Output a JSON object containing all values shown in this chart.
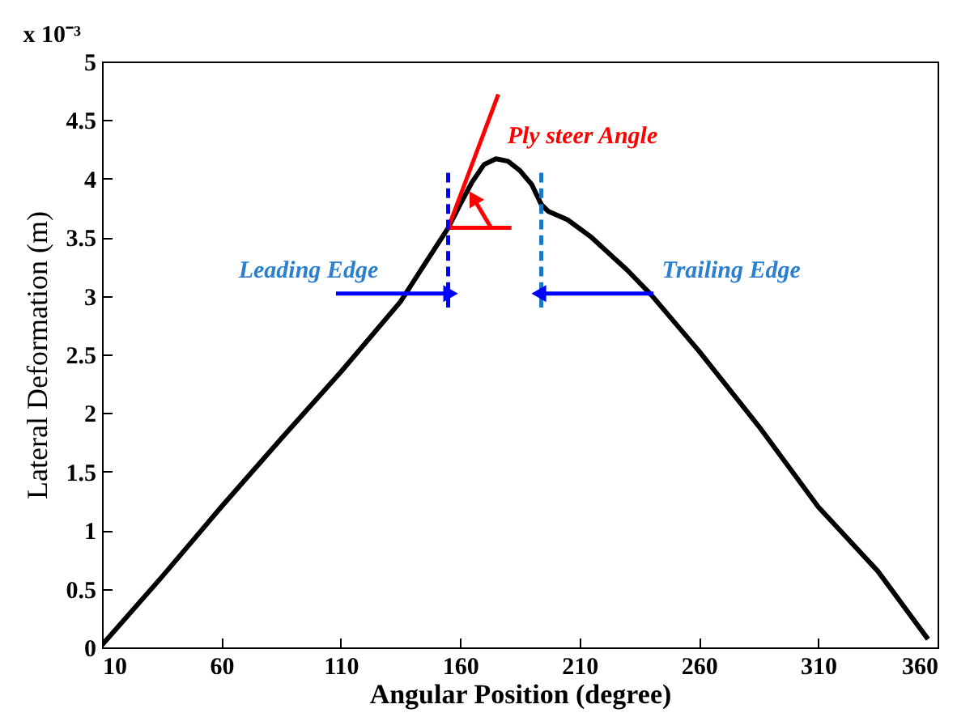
{
  "chart_data": {
    "type": "line",
    "xlabel": "Angular Position (degree)",
    "ylabel": "Lateral Deformation (m)",
    "xlim": [
      10,
      360
    ],
    "xticks": [
      10,
      60,
      110,
      160,
      210,
      260,
      310,
      360
    ],
    "ylim": [
      0,
      5
    ],
    "yticks": [
      0,
      0.5,
      1,
      1.5,
      2,
      2.5,
      3,
      3.5,
      4,
      4.5,
      5
    ],
    "grid": false,
    "series": [
      {
        "color": "#000000",
        "x": [
          10,
          35,
          60,
          85,
          110,
          135,
          155,
          160,
          165,
          170,
          175,
          180,
          185,
          190,
          194,
          197,
          205,
          215,
          230,
          240,
          260,
          285,
          310,
          335,
          356
        ],
        "values": [
          0.02,
          0.6,
          1.2,
          1.78,
          2.35,
          2.95,
          3.58,
          3.78,
          3.97,
          4.12,
          4.17,
          4.15,
          4.07,
          3.95,
          3.78,
          3.72,
          3.65,
          3.5,
          3.22,
          3.01,
          2.53,
          1.89,
          1.2,
          0.65,
          0.07
        ]
      },
      {
        "type": "line",
        "color": "#ff0000",
        "x": [
          155,
          176
        ],
        "values": [
          3.58,
          4.72
        ]
      },
      {
        "type": "line",
        "color": "#ff0000",
        "x": [
          155,
          181.5
        ],
        "values": [
          3.58,
          3.58
        ]
      },
      {
        "type": "line",
        "color": "#ff0000",
        "x": [
          173,
          166
        ],
        "values": [
          3.58,
          3.82
        ],
        "marker": "triangle"
      },
      {
        "type": "line",
        "color": "#0000ff",
        "x": [
          155,
          155
        ],
        "values": [
          2.9,
          4.05
        ],
        "line_style": "dashed"
      },
      {
        "type": "line",
        "color": "#1a78c2",
        "x": [
          194,
          194
        ],
        "values": [
          2.9,
          4.05
        ],
        "line_style": "dashed"
      },
      {
        "type": "line",
        "color": "#0000ff",
        "x": [
          108,
          155
        ],
        "values": [
          3.02,
          3.02
        ],
        "marker": "triangle"
      },
      {
        "type": "line",
        "color": "#0000ff",
        "x": [
          241,
          194
        ],
        "values": [
          3.02,
          3.02
        ],
        "marker": "triangle"
      }
    ],
    "annotations": [
      "x 10⁻³",
      {
        "text": "Leading Edge",
        "x": 108,
        "y": 3.02
      },
      {
        "text": "Trailing Edge",
        "x": 241,
        "y": 3.02
      },
      {
        "text": "Ply steer Angle",
        "x": 176,
        "y": 4.72
      }
    ]
  }
}
